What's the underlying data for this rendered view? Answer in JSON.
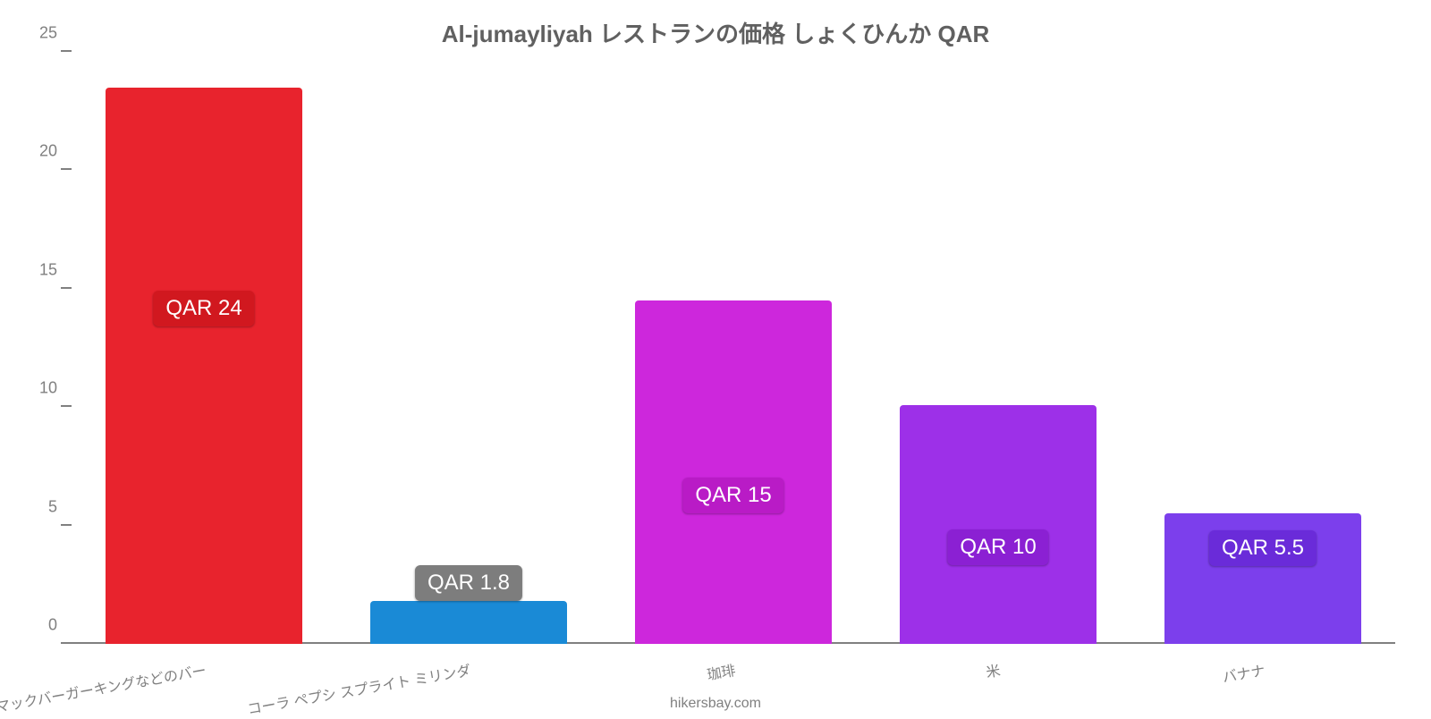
{
  "chart": {
    "type": "bar",
    "title": "Al-jumayliyah レストランの価格 しょくひんか QAR",
    "title_fontsize": 26,
    "title_color": "#606060",
    "background_color": "#ffffff",
    "axis_color": "#808080",
    "label_color": "#808080",
    "tick_fontsize": 18,
    "xlabel_fontsize": 16,
    "ylim": [
      0,
      25
    ],
    "yticks": [
      0,
      5,
      10,
      15,
      20,
      25
    ],
    "bar_width_pct": 74,
    "bars": [
      {
        "category": "マックバーガーキングなどのバー",
        "value": 23.5,
        "value_label": "QAR 24",
        "bar_color": "#e8232d",
        "label_bg": "#d1181f",
        "label_offset_pct": 57
      },
      {
        "category": "コーラ ペプシ スプライト ミリンダ",
        "value": 1.8,
        "value_label": "QAR 1.8",
        "bar_color": "#1a8ad6",
        "label_bg": "#7d7d7d",
        "label_offset_pct": 100
      },
      {
        "category": "珈琲",
        "value": 14.5,
        "value_label": "QAR 15",
        "bar_color": "#cd27dc",
        "label_bg": "#b91bc6",
        "label_offset_pct": 38
      },
      {
        "category": "米",
        "value": 10.1,
        "value_label": "QAR 10",
        "bar_color": "#9d30e8",
        "label_bg": "#8b20d3",
        "label_offset_pct": 33
      },
      {
        "category": "バナナ",
        "value": 5.5,
        "value_label": "QAR 5.5",
        "bar_color": "#7c3fec",
        "label_bg": "#6a2bd9",
        "label_offset_pct": 60
      }
    ],
    "footer": "hikersbay.com"
  }
}
